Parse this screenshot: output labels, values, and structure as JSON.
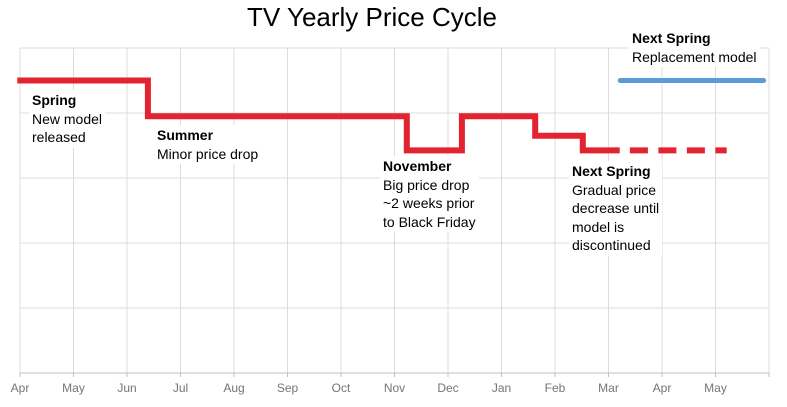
{
  "colors": {
    "red": "#e32330",
    "blue": "#5b9bd5",
    "grid": "#dcdcdc",
    "axis": "#c0c0c0",
    "tick_label": "#757575",
    "title": "#000000",
    "annotation_text": "#000000"
  },
  "chart_data": {
    "type": "line",
    "subtype": "step",
    "title": "TV Yearly Price Cycle",
    "xlabel": "",
    "ylabel": "",
    "categories": [
      "Apr",
      "May",
      "Jun",
      "Jul",
      "Aug",
      "Sep",
      "Oct",
      "Nov",
      "Dec",
      "Jan",
      "Feb",
      "Mar",
      "Apr",
      "May"
    ],
    "ylim": [
      0,
      100
    ],
    "y_axis_labels_visible": false,
    "grid": true,
    "legend": "none",
    "series": [
      {
        "name": "TV price",
        "color_key": "red",
        "style": "solid",
        "width": 6,
        "points": [
          [
            -0.05,
            90
          ],
          [
            2.39,
            90
          ],
          [
            2.39,
            79
          ],
          [
            7.23,
            79
          ],
          [
            7.23,
            68.5
          ],
          [
            8.26,
            68.5
          ],
          [
            8.26,
            79
          ],
          [
            9.63,
            79
          ],
          [
            9.63,
            73
          ],
          [
            10.52,
            73
          ],
          [
            10.52,
            68.5
          ],
          [
            11.21,
            68.5
          ]
        ]
      },
      {
        "name": "TV price while model is discontinued",
        "color_key": "red",
        "style": "dashed",
        "width": 6,
        "points": [
          [
            11.4,
            68.5
          ],
          [
            13.21,
            68.5
          ]
        ]
      },
      {
        "name": "Replacement model",
        "color_key": "blue",
        "style": "solid",
        "linecap": "round",
        "width": 5,
        "points": [
          [
            11.22,
            90
          ],
          [
            13.9,
            90
          ]
        ]
      }
    ]
  },
  "annotations": [
    {
      "id": "spring",
      "heading": "Spring",
      "body": "New model\nreleased"
    },
    {
      "id": "summer",
      "heading": "Summer",
      "body": "Minor price drop"
    },
    {
      "id": "november",
      "heading": "November",
      "body": "Big price drop\n~2 weeks prior\nto Black Friday"
    },
    {
      "id": "next-spring-bottom",
      "heading": "Next Spring",
      "body": "Gradual price\ndecrease until\nmodel is\ndiscontinued"
    },
    {
      "id": "next-spring-top",
      "heading": "Next Spring",
      "body": "Replacement model"
    }
  ]
}
